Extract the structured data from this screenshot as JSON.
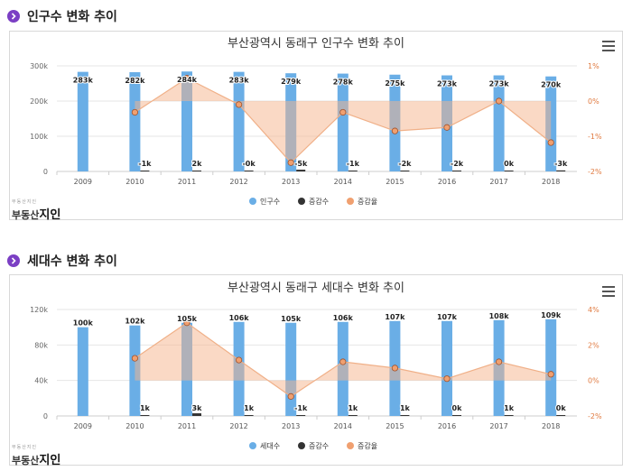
{
  "sections": [
    {
      "heading": "인구수 변화 추이"
    },
    {
      "heading": "세대수 변화 추이"
    }
  ],
  "logo": {
    "small": "부동산지인",
    "text": "부동산",
    "brand": "지인"
  },
  "chart_data": [
    {
      "type": "bar",
      "title": "부산광역시 동래구 인구수 변화 추이",
      "categories": [
        "2009",
        "2010",
        "2011",
        "2012",
        "2013",
        "2014",
        "2015",
        "2016",
        "2017",
        "2018"
      ],
      "y_left": {
        "ticks": [
          "0",
          "100k",
          "200k",
          "300k"
        ],
        "ylim": [
          0,
          300000
        ]
      },
      "y_right": {
        "ticks": [
          "1%",
          "0%",
          "-1%",
          "-2%"
        ],
        "ylim": [
          -2,
          1
        ]
      },
      "series": [
        {
          "name": "인구수",
          "kind": "bar",
          "color": "#6aaee6",
          "values": [
            283000,
            282000,
            284000,
            283000,
            279000,
            278000,
            275000,
            273000,
            273000,
            270000
          ],
          "labels": [
            "283k",
            "282k",
            "284k",
            "283k",
            "279k",
            "278k",
            "275k",
            "273k",
            "273k",
            "270k"
          ]
        },
        {
          "name": "증감수",
          "kind": "bar",
          "color": "#333333",
          "values": [
            null,
            -1000,
            2000,
            -200,
            -5000,
            -1000,
            -2000,
            -2000,
            200,
            -3000
          ],
          "labels": [
            "",
            "-1k",
            "2k",
            "-0k",
            "-5k",
            "-1k",
            "-2k",
            "-2k",
            "0k",
            "-3k"
          ]
        },
        {
          "name": "증감율",
          "kind": "area",
          "color": "#f0a070",
          "values": [
            null,
            -0.32,
            0.65,
            -0.1,
            -1.75,
            -0.32,
            -0.85,
            -0.75,
            0.0,
            -1.18
          ]
        }
      ],
      "legend_position": "bottom-center"
    },
    {
      "type": "bar",
      "title": "부산광역시 동래구 세대수 변화 추이",
      "categories": [
        "2009",
        "2010",
        "2011",
        "2012",
        "2013",
        "2014",
        "2015",
        "2016",
        "2017",
        "2018"
      ],
      "y_left": {
        "ticks": [
          "0",
          "40k",
          "80k",
          "120k"
        ],
        "ylim": [
          0,
          120000
        ]
      },
      "y_right": {
        "ticks": [
          "4%",
          "2%",
          "0%",
          "-2%"
        ],
        "ylim": [
          -2,
          4
        ]
      },
      "series": [
        {
          "name": "세대수",
          "kind": "bar",
          "color": "#6aaee6",
          "values": [
            100000,
            102000,
            105000,
            106000,
            105000,
            106000,
            107000,
            107000,
            108000,
            109000
          ],
          "labels": [
            "100k",
            "102k",
            "105k",
            "106k",
            "105k",
            "106k",
            "107k",
            "107k",
            "108k",
            "109k"
          ]
        },
        {
          "name": "증감수",
          "kind": "bar",
          "color": "#333333",
          "values": [
            null,
            1000,
            3000,
            1000,
            -1000,
            1000,
            1000,
            200,
            1000,
            200
          ],
          "labels": [
            "",
            "1k",
            "3k",
            "1k",
            "-1k",
            "1k",
            "1k",
            "0k",
            "1k",
            "0k"
          ]
        },
        {
          "name": "증감율",
          "kind": "area",
          "color": "#f0a070",
          "values": [
            null,
            1.25,
            3.25,
            1.15,
            -0.9,
            1.05,
            0.7,
            0.1,
            1.05,
            0.35
          ]
        }
      ],
      "legend_position": "bottom-center"
    }
  ]
}
